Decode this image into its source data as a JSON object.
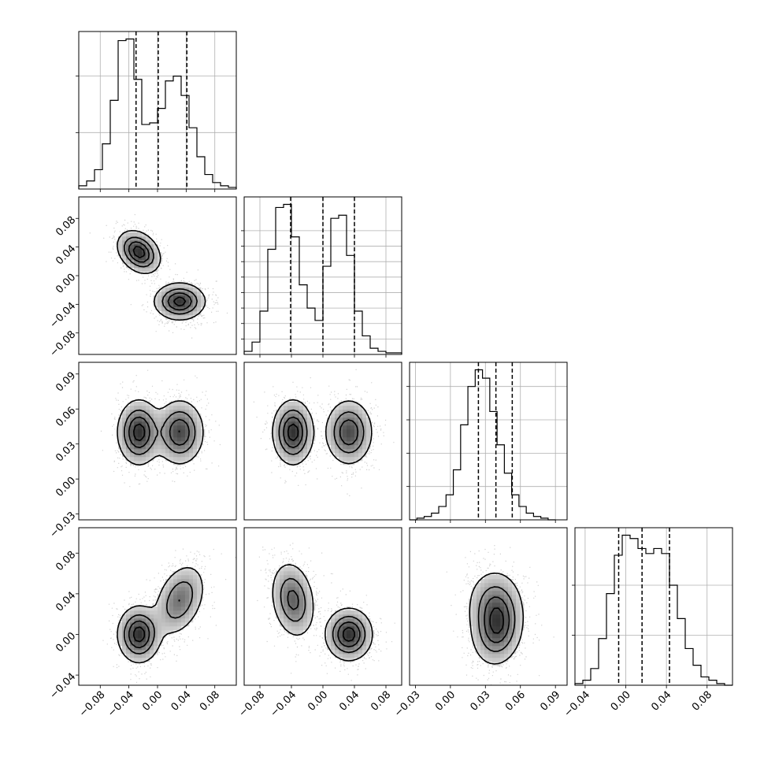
{
  "chart_data": [
    {
      "type": "histogram",
      "panel": "hist-p0",
      "row": 0,
      "col": 0,
      "xlim": [
        -0.11,
        0.11
      ],
      "bin_start": -0.11,
      "bin_width": 0.011,
      "counts": [
        2,
        5,
        12,
        28,
        55,
        92,
        93,
        68,
        40,
        41,
        50,
        67,
        70,
        58,
        38,
        20,
        9,
        4,
        2,
        1
      ],
      "quantiles": [
        -0.03,
        0.001,
        0.041
      ],
      "yticks": [
        35,
        70
      ],
      "xticks": [
        -0.08,
        -0.04,
        0.0,
        0.04,
        0.08
      ],
      "xtick_labels": [
        "−0.08",
        "−0.04",
        "0.00",
        "0.04",
        "0.08"
      ]
    },
    {
      "type": "scatter-density",
      "panel": "joint-p1-p0",
      "row": 1,
      "col": 0,
      "xlim": [
        -0.11,
        0.11
      ],
      "ylim": [
        -0.11,
        0.11
      ],
      "modes": [
        {
          "x": -0.026,
          "y": 0.033,
          "sx": 0.015,
          "sy": 0.015,
          "rho": -0.3,
          "w": 0.5
        },
        {
          "x": 0.031,
          "y": -0.036,
          "sx": 0.018,
          "sy": 0.013,
          "rho": 0.0,
          "w": 0.5
        }
      ],
      "yticks": [
        -0.08,
        -0.04,
        0.0,
        0.04,
        0.08
      ],
      "ytick_labels": [
        "−0.08",
        "−0.04",
        "0.00",
        "0.04",
        "0.08"
      ]
    },
    {
      "type": "histogram",
      "panel": "hist-p1",
      "row": 1,
      "col": 1,
      "xlim": [
        -0.1,
        0.1
      ],
      "bin_start": -0.1,
      "bin_width": 0.01,
      "counts": [
        2,
        8,
        28,
        68,
        95,
        97,
        76,
        45,
        30,
        22,
        57,
        88,
        90,
        64,
        28,
        12,
        4,
        2,
        1,
        1
      ],
      "quantiles": [
        -0.041,
        0.0,
        0.04
      ],
      "yticks": [
        10,
        20,
        30,
        40,
        50,
        60,
        70,
        80
      ],
      "xticks": [
        -0.08,
        -0.04,
        0.0,
        0.04,
        0.08
      ],
      "xtick_labels": [
        "−0.08",
        "−0.04",
        "0.00",
        "0.04",
        "0.08"
      ]
    },
    {
      "type": "scatter-density",
      "panel": "joint-p2-p0",
      "row": 2,
      "col": 0,
      "xlim": [
        -0.11,
        0.11
      ],
      "ylim": [
        -0.035,
        0.1
      ],
      "modes": [
        {
          "x": -0.026,
          "y": 0.04,
          "sx": 0.015,
          "sy": 0.014,
          "rho": 0.0,
          "w": 0.5
        },
        {
          "x": 0.031,
          "y": 0.04,
          "sx": 0.017,
          "sy": 0.014,
          "rho": 0.0,
          "w": 0.5
        }
      ],
      "yticks": [
        -0.03,
        0.0,
        0.03,
        0.06,
        0.09
      ],
      "ytick_labels": [
        "−0.03",
        "0.00",
        "0.03",
        "0.06",
        "0.09"
      ]
    },
    {
      "type": "scatter-density",
      "panel": "joint-p2-p1",
      "row": 2,
      "col": 1,
      "xlim": [
        -0.1,
        0.1
      ],
      "ylim": [
        -0.035,
        0.1
      ],
      "modes": [
        {
          "x": -0.038,
          "y": 0.04,
          "sx": 0.013,
          "sy": 0.014,
          "rho": 0.0,
          "w": 0.5
        },
        {
          "x": 0.033,
          "y": 0.04,
          "sx": 0.015,
          "sy": 0.014,
          "rho": 0.0,
          "w": 0.5
        }
      ]
    },
    {
      "type": "histogram",
      "panel": "hist-p2",
      "row": 2,
      "col": 2,
      "xlim": [
        -0.035,
        0.1
      ],
      "bin_start": -0.035,
      "bin_width": 0.00625,
      "counts": [
        0,
        1,
        2,
        4,
        8,
        15,
        30,
        57,
        80,
        90,
        85,
        65,
        45,
        28,
        15,
        8,
        4,
        2,
        1,
        0
      ],
      "quantiles": [
        0.024,
        0.039,
        0.053
      ],
      "yticks": [
        20,
        40,
        60,
        80
      ],
      "xticks": [
        -0.03,
        0.0,
        0.03,
        0.06,
        0.09
      ],
      "xtick_labels": [
        "−0.03",
        "0.00",
        "0.03",
        "0.06",
        "0.09"
      ]
    },
    {
      "type": "scatter-density",
      "panel": "joint-p3-p0",
      "row": 3,
      "col": 0,
      "xlim": [
        -0.11,
        0.11
      ],
      "ylim": [
        -0.05,
        0.105
      ],
      "modes": [
        {
          "x": -0.026,
          "y": 0.0,
          "sx": 0.015,
          "sy": 0.014,
          "rho": 0.0,
          "w": 0.5
        },
        {
          "x": 0.031,
          "y": 0.034,
          "sx": 0.018,
          "sy": 0.018,
          "rho": 0.35,
          "w": 0.5
        }
      ],
      "yticks": [
        -0.04,
        0.0,
        0.04,
        0.08
      ],
      "ytick_labels": [
        "−0.04",
        "0.00",
        "0.04",
        "0.08"
      ],
      "xticks": [
        -0.08,
        -0.04,
        0.0,
        0.04,
        0.08
      ],
      "xtick_labels": [
        "−0.08",
        "−0.04",
        "0.00",
        "0.04",
        "0.08"
      ]
    },
    {
      "type": "scatter-density",
      "panel": "joint-p3-p1",
      "row": 3,
      "col": 1,
      "xlim": [
        -0.1,
        0.1
      ],
      "ylim": [
        -0.05,
        0.105
      ],
      "modes": [
        {
          "x": -0.038,
          "y": 0.034,
          "sx": 0.014,
          "sy": 0.019,
          "rho": -0.2,
          "w": 0.5
        },
        {
          "x": 0.033,
          "y": 0.0,
          "sx": 0.015,
          "sy": 0.013,
          "rho": 0.0,
          "w": 0.5
        }
      ],
      "xticks": [
        -0.08,
        -0.04,
        0.0,
        0.04,
        0.08
      ],
      "xtick_labels": [
        "−0.08",
        "−0.04",
        "0.00",
        "0.04",
        "0.08"
      ]
    },
    {
      "type": "scatter-density",
      "panel": "joint-p3-p2",
      "row": 3,
      "col": 2,
      "xlim": [
        -0.035,
        0.1
      ],
      "ylim": [
        -0.05,
        0.105
      ],
      "modes": [
        {
          "x": 0.04,
          "y": 0.004,
          "sx": 0.011,
          "sy": 0.018,
          "rho": 0.1,
          "w": 0.55
        },
        {
          "x": 0.038,
          "y": 0.03,
          "sx": 0.012,
          "sy": 0.018,
          "rho": 0.0,
          "w": 0.45
        }
      ],
      "xticks": [
        -0.03,
        0.0,
        0.03,
        0.06,
        0.09
      ],
      "xtick_labels": [
        "−0.03",
        "0.00",
        "0.03",
        "0.06",
        "0.09"
      ]
    },
    {
      "type": "histogram",
      "panel": "hist-p3",
      "row": 3,
      "col": 3,
      "xlim": [
        -0.05,
        0.105
      ],
      "bin_start": -0.05,
      "bin_width": 0.00775,
      "counts": [
        1,
        3,
        10,
        28,
        55,
        78,
        90,
        88,
        82,
        79,
        82,
        79,
        60,
        40,
        22,
        12,
        5,
        3,
        1,
        0
      ],
      "quantiles": [
        -0.007,
        0.016,
        0.043
      ],
      "yticks": [
        30,
        60
      ],
      "xticks": [
        -0.04,
        0.0,
        0.04,
        0.08
      ],
      "xtick_labels": [
        "−0.04",
        "0.00",
        "0.04",
        "0.08"
      ]
    }
  ]
}
